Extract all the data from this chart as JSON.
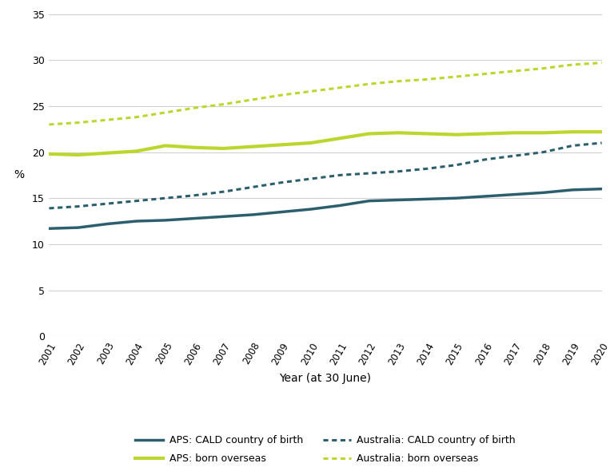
{
  "years": [
    2001,
    2002,
    2003,
    2004,
    2005,
    2006,
    2007,
    2008,
    2009,
    2010,
    2011,
    2012,
    2013,
    2014,
    2015,
    2016,
    2017,
    2018,
    2019,
    2020
  ],
  "aps_cald": [
    11.7,
    11.8,
    12.2,
    12.5,
    12.6,
    12.8,
    13.0,
    13.2,
    13.5,
    13.8,
    14.2,
    14.7,
    14.8,
    14.9,
    15.0,
    15.2,
    15.4,
    15.6,
    15.9,
    16.0
  ],
  "australia_cald": [
    13.9,
    14.1,
    14.4,
    14.7,
    15.0,
    15.3,
    15.7,
    16.2,
    16.7,
    17.1,
    17.5,
    17.7,
    17.9,
    18.2,
    18.6,
    19.2,
    19.6,
    20.0,
    20.7,
    21.0
  ],
  "aps_born_overseas": [
    19.8,
    19.7,
    19.9,
    20.1,
    20.7,
    20.5,
    20.4,
    20.6,
    20.8,
    21.0,
    21.5,
    22.0,
    22.1,
    22.0,
    21.9,
    22.0,
    22.1,
    22.1,
    22.2,
    22.2
  ],
  "australia_born_overseas": [
    23.0,
    23.2,
    23.5,
    23.8,
    24.3,
    24.8,
    25.2,
    25.7,
    26.2,
    26.6,
    27.0,
    27.4,
    27.7,
    27.9,
    28.2,
    28.5,
    28.8,
    29.1,
    29.5,
    29.7
  ],
  "dark_color": "#2b5f6d",
  "green_color": "#bdd62e",
  "xlabel": "Year (at 30 June)",
  "ylabel": "%",
  "ylim": [
    0,
    35
  ],
  "yticks": [
    0,
    5,
    10,
    15,
    20,
    25,
    30,
    35
  ],
  "grid_color": "#d0d0d0",
  "legend_labels": [
    "APS: CALD country of birth",
    "Australia: CALD country of birth",
    "APS: born overseas",
    "Australia: born overseas"
  ]
}
